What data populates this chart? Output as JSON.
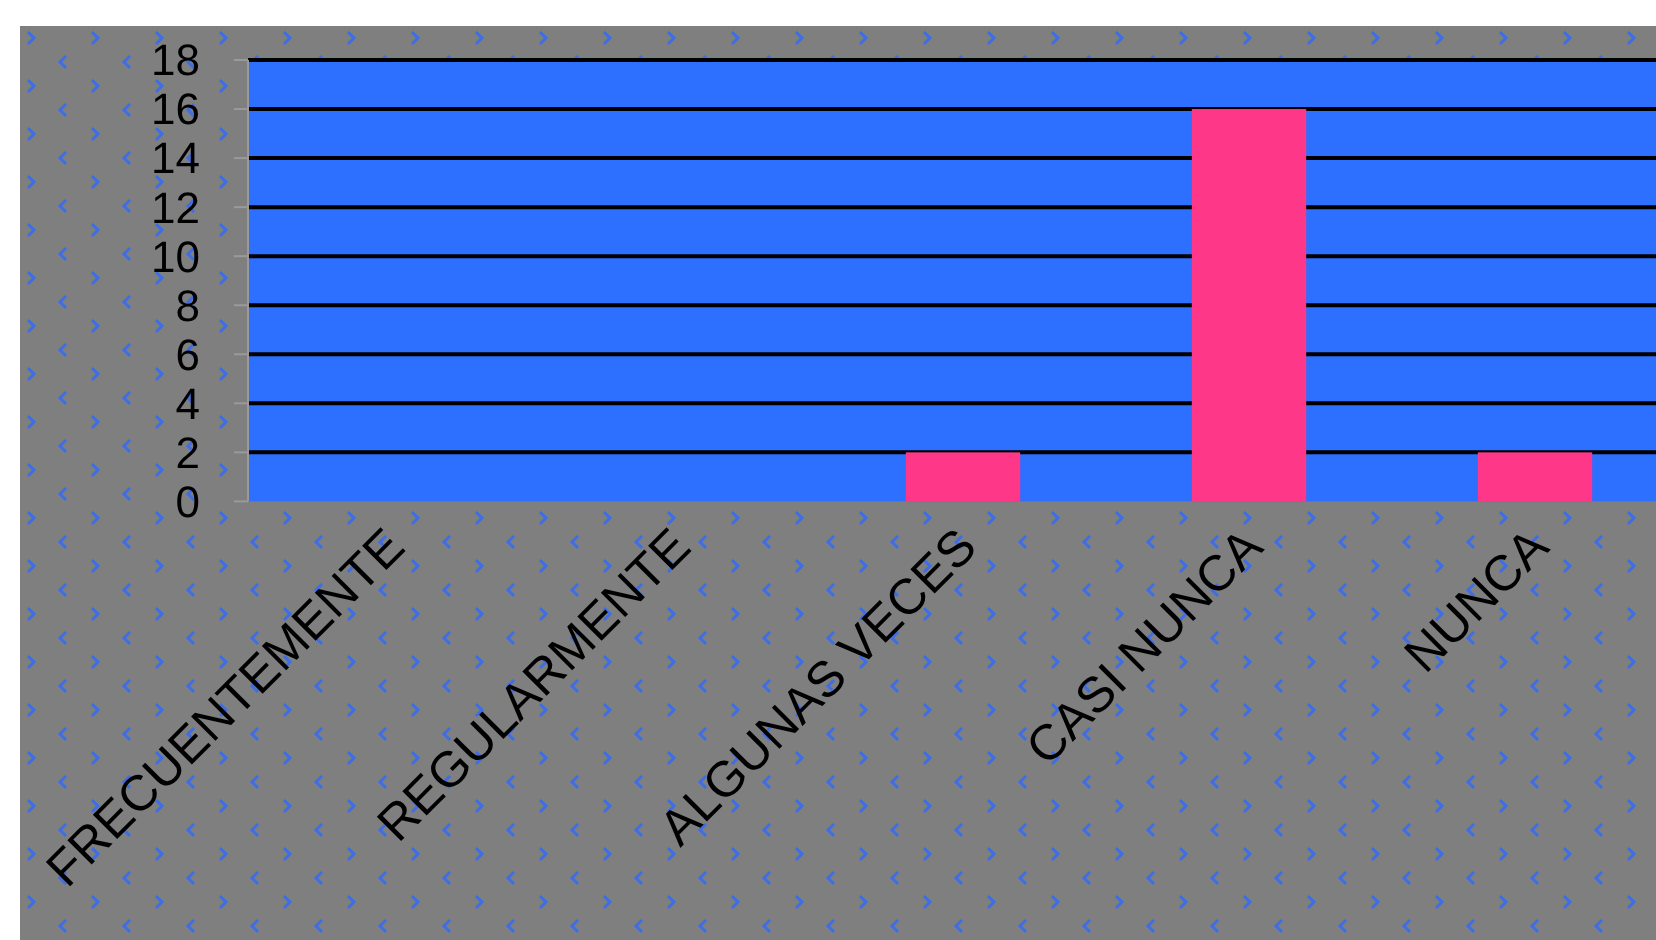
{
  "chart_data": {
    "type": "bar",
    "categories": [
      "FRECUENTEMENTE",
      "REGULARMENTE",
      "ALGUNAS VECES",
      "CASI NUNCA",
      "NUNCA"
    ],
    "values": [
      0,
      0,
      2,
      16,
      2
    ],
    "color": "#fe3788",
    "ylim": [
      0,
      18
    ],
    "yticks": [
      0,
      2,
      4,
      6,
      8,
      10,
      12,
      14,
      16,
      18
    ],
    "grid": "y"
  }
}
